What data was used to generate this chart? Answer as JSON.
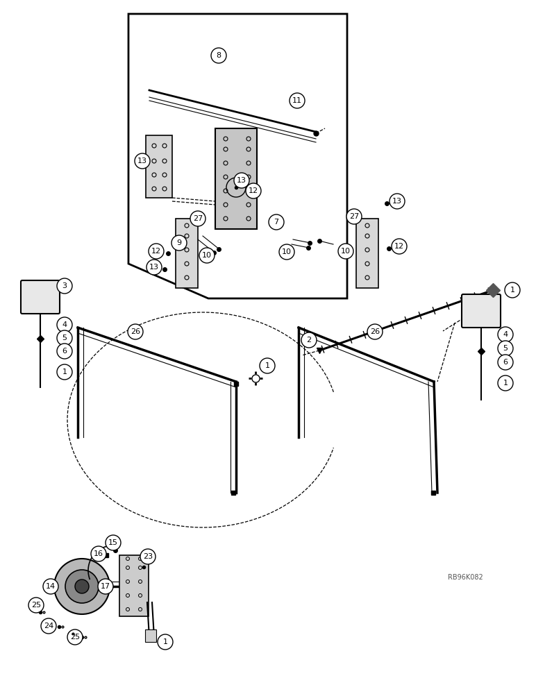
{
  "bg_color": "#ffffff",
  "line_color": "#000000",
  "watermark": "RB96K082",
  "font_size_label": 8,
  "font_size_watermark": 7
}
